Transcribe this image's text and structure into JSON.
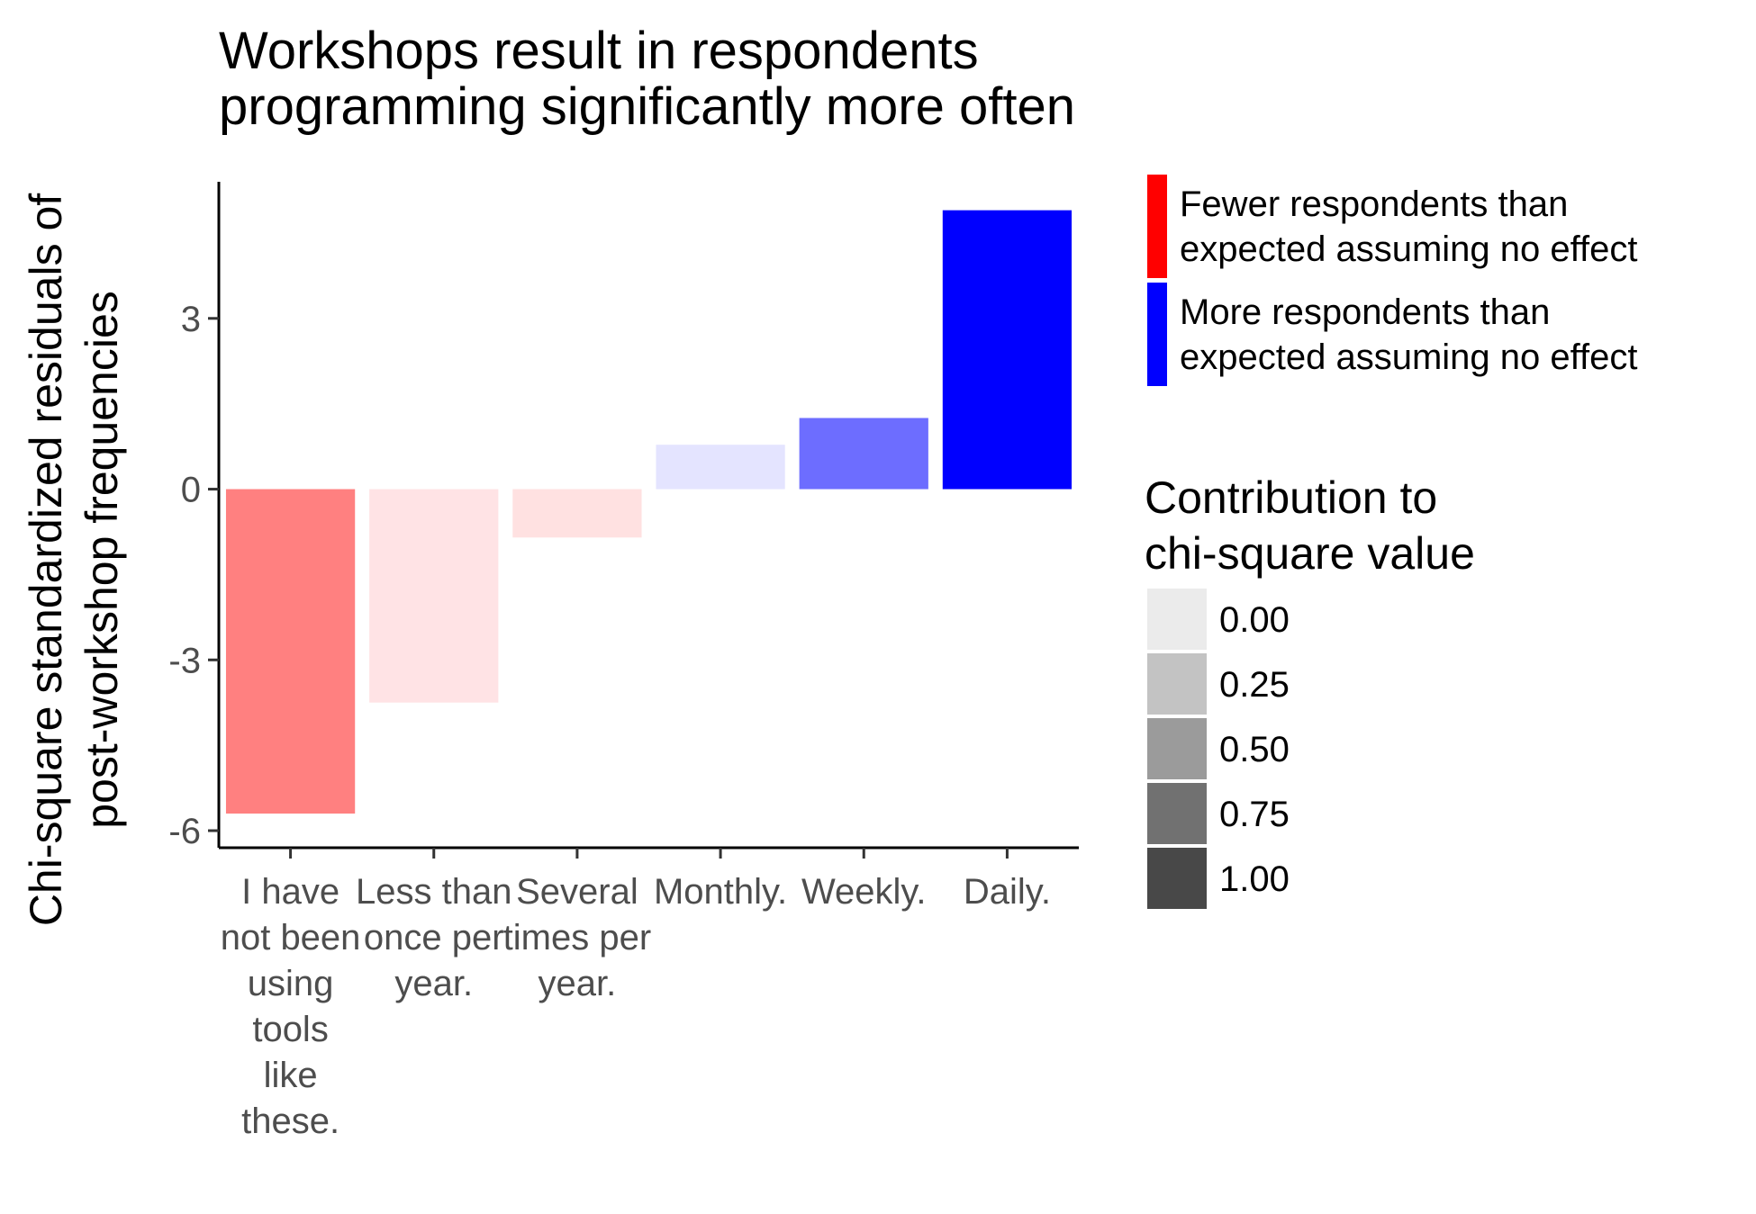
{
  "chart_data": {
    "type": "bar",
    "title_lines": [
      "Workshops result in respondents",
      "programming significantly more often"
    ],
    "ylabel_lines": [
      "Chi-square standardized residuals of",
      "post-workshop frequencies"
    ],
    "xlabel": "",
    "ylim": [
      -6.3,
      5.4
    ],
    "yticks": [
      {
        "value": -6,
        "label": "-6"
      },
      {
        "value": -3,
        "label": "-3"
      },
      {
        "value": 0,
        "label": "0"
      },
      {
        "value": 3,
        "label": "3"
      }
    ],
    "categories": [
      {
        "label_lines": [
          "I have",
          "not been",
          "using",
          "tools",
          "like",
          "these."
        ],
        "value": -5.7,
        "contribution": 0.47,
        "color": "#FF8080"
      },
      {
        "label_lines": [
          "Less than",
          "once per",
          "year."
        ],
        "value": -3.75,
        "contribution": 0.12,
        "color": "#FFE3E5"
      },
      {
        "label_lines": [
          "Several",
          "times per",
          "year."
        ],
        "value": -0.85,
        "contribution": 0.12,
        "color": "#FFE1E1"
      },
      {
        "label_lines": [
          "Monthly."
        ],
        "value": 0.78,
        "contribution": 0.12,
        "color": "#E4E4FF"
      },
      {
        "label_lines": [
          "Weekly."
        ],
        "value": 1.25,
        "contribution": 0.58,
        "color": "#6D6DFF"
      },
      {
        "label_lines": [
          "Daily."
        ],
        "value": 4.9,
        "contribution": 1.0,
        "color": "#0000FF"
      }
    ],
    "legend_direction": {
      "position": "right",
      "items": [
        {
          "lines": [
            "Fewer respondents than",
            "expected assuming no effect"
          ],
          "color": "#FF0000"
        },
        {
          "lines": [
            "More respondents than",
            "expected assuming no effect"
          ],
          "color": "#0000FF"
        }
      ]
    },
    "legend_contribution": {
      "title_lines": [
        "Contribution to",
        "chi-square value"
      ],
      "items": [
        {
          "label": "0.00",
          "color": "#EBEBEB"
        },
        {
          "label": "0.25",
          "color": "#C3C3C3"
        },
        {
          "label": "0.50",
          "color": "#9B9B9B"
        },
        {
          "label": "0.75",
          "color": "#717171"
        },
        {
          "label": "1.00",
          "color": "#484848"
        }
      ]
    },
    "grid": false
  }
}
